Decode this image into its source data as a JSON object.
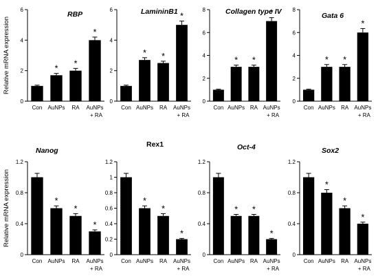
{
  "figure": {
    "ylabel": "Relative mRNA expression",
    "categories": [
      "Con",
      "AuNPs",
      "RA",
      "AuNPs\n+ RA"
    ]
  },
  "chart_data": [
    {
      "type": "bar",
      "title": "RBP",
      "title_italic": true,
      "ylabel": "Relative mRNA expression",
      "categories": [
        "Con",
        "AuNPs",
        "RA",
        "AuNPs + RA"
      ],
      "values": [
        1.0,
        1.7,
        2.0,
        4.0
      ],
      "errors": [
        0.05,
        0.12,
        0.15,
        0.2
      ],
      "significant": [
        false,
        true,
        true,
        true
      ],
      "ylim": [
        0,
        6
      ],
      "yticks": [
        "0",
        "2",
        "4",
        "6"
      ],
      "ytick_values": [
        0,
        2,
        4,
        6
      ],
      "grid": false
    },
    {
      "type": "bar",
      "title": "LamininB1",
      "title_italic": true,
      "ylabel": "",
      "categories": [
        "Con",
        "AuNPs",
        "RA",
        "AuNPs + RA"
      ],
      "values": [
        1.0,
        2.7,
        2.5,
        5.0
      ],
      "errors": [
        0.05,
        0.15,
        0.12,
        0.25
      ],
      "significant": [
        false,
        true,
        true,
        true
      ],
      "ylim": [
        0,
        6
      ],
      "yticks": [
        "0",
        "2",
        "4",
        "6"
      ],
      "ytick_values": [
        0,
        2,
        4,
        6
      ],
      "grid": false
    },
    {
      "type": "bar",
      "title": "Collagen type IV",
      "title_italic": true,
      "ylabel": "",
      "categories": [
        "Con",
        "AuNPs",
        "RA",
        "AuNPs + RA"
      ],
      "values": [
        1.0,
        3.0,
        3.0,
        7.0
      ],
      "errors": [
        0.05,
        0.15,
        0.15,
        0.3
      ],
      "significant": [
        false,
        true,
        true,
        true
      ],
      "ylim": [
        0,
        8
      ],
      "yticks": [
        "0",
        "2",
        "4",
        "6",
        "8"
      ],
      "ytick_values": [
        0,
        2,
        4,
        6,
        8
      ],
      "grid": false
    },
    {
      "type": "bar",
      "title": "Gata 6",
      "title_italic": true,
      "ylabel": "",
      "categories": [
        "Con",
        "AuNPs",
        "RA",
        "AuNPs + RA"
      ],
      "values": [
        1.0,
        3.0,
        3.0,
        6.0
      ],
      "errors": [
        0.05,
        0.2,
        0.2,
        0.35
      ],
      "significant": [
        false,
        true,
        true,
        true
      ],
      "ylim": [
        0,
        8
      ],
      "yticks": [
        "0",
        "2",
        "4",
        "6",
        "8"
      ],
      "ytick_values": [
        0,
        2,
        4,
        6,
        8
      ],
      "grid": false
    },
    {
      "type": "bar",
      "title": "Nanog",
      "title_italic": true,
      "ylabel": "Relative mRNA expression",
      "categories": [
        "Con",
        "AuNPs",
        "RA",
        "AuNPs + RA"
      ],
      "values": [
        1.0,
        0.6,
        0.5,
        0.3
      ],
      "errors": [
        0.05,
        0.03,
        0.03,
        0.02
      ],
      "significant": [
        false,
        true,
        true,
        true
      ],
      "ylim": [
        0,
        1.2
      ],
      "yticks": [
        "0",
        "0.4",
        "0.8",
        "1.2"
      ],
      "ytick_values": [
        0,
        0.4,
        0.8,
        1.2
      ],
      "grid": false
    },
    {
      "type": "bar",
      "title": "Rex1",
      "title_italic": false,
      "ylabel": "",
      "categories": [
        "Con",
        "AuNPs",
        "RA",
        "AuNPs + RA"
      ],
      "values": [
        1.0,
        0.6,
        0.5,
        0.2
      ],
      "errors": [
        0.05,
        0.03,
        0.03,
        0.01
      ],
      "significant": [
        false,
        true,
        true,
        true
      ],
      "ylim": [
        0,
        1.2
      ],
      "yticks": [
        "0",
        "0.2",
        "0.4",
        "0.6",
        "0.8",
        "1",
        "1.2"
      ],
      "ytick_values": [
        0,
        0.2,
        0.4,
        0.6,
        0.8,
        1,
        1.2
      ],
      "grid": false
    },
    {
      "type": "bar",
      "title": "Oct-4",
      "title_italic": true,
      "ylabel": "",
      "categories": [
        "Con",
        "AuNPs",
        "RA",
        "AuNPs + RA"
      ],
      "values": [
        1.0,
        0.5,
        0.5,
        0.2
      ],
      "errors": [
        0.05,
        0.02,
        0.02,
        0.01
      ],
      "significant": [
        false,
        true,
        true,
        true
      ],
      "ylim": [
        0,
        1.2
      ],
      "yticks": [
        "0",
        "0.4",
        "0.8",
        "1.2"
      ],
      "ytick_values": [
        0,
        0.4,
        0.8,
        1.2
      ],
      "grid": false
    },
    {
      "type": "bar",
      "title": "Sox2",
      "title_italic": true,
      "ylabel": "",
      "categories": [
        "Con",
        "AuNPs",
        "RA",
        "AuNPs + RA"
      ],
      "values": [
        1.0,
        0.8,
        0.6,
        0.4
      ],
      "errors": [
        0.05,
        0.04,
        0.03,
        0.02
      ],
      "significant": [
        false,
        true,
        true,
        true
      ],
      "ylim": [
        0,
        1.2
      ],
      "yticks": [
        "0",
        "0.4",
        "0.8",
        "1.2"
      ],
      "ytick_values": [
        0,
        0.4,
        0.8,
        1.2
      ],
      "grid": false
    }
  ]
}
